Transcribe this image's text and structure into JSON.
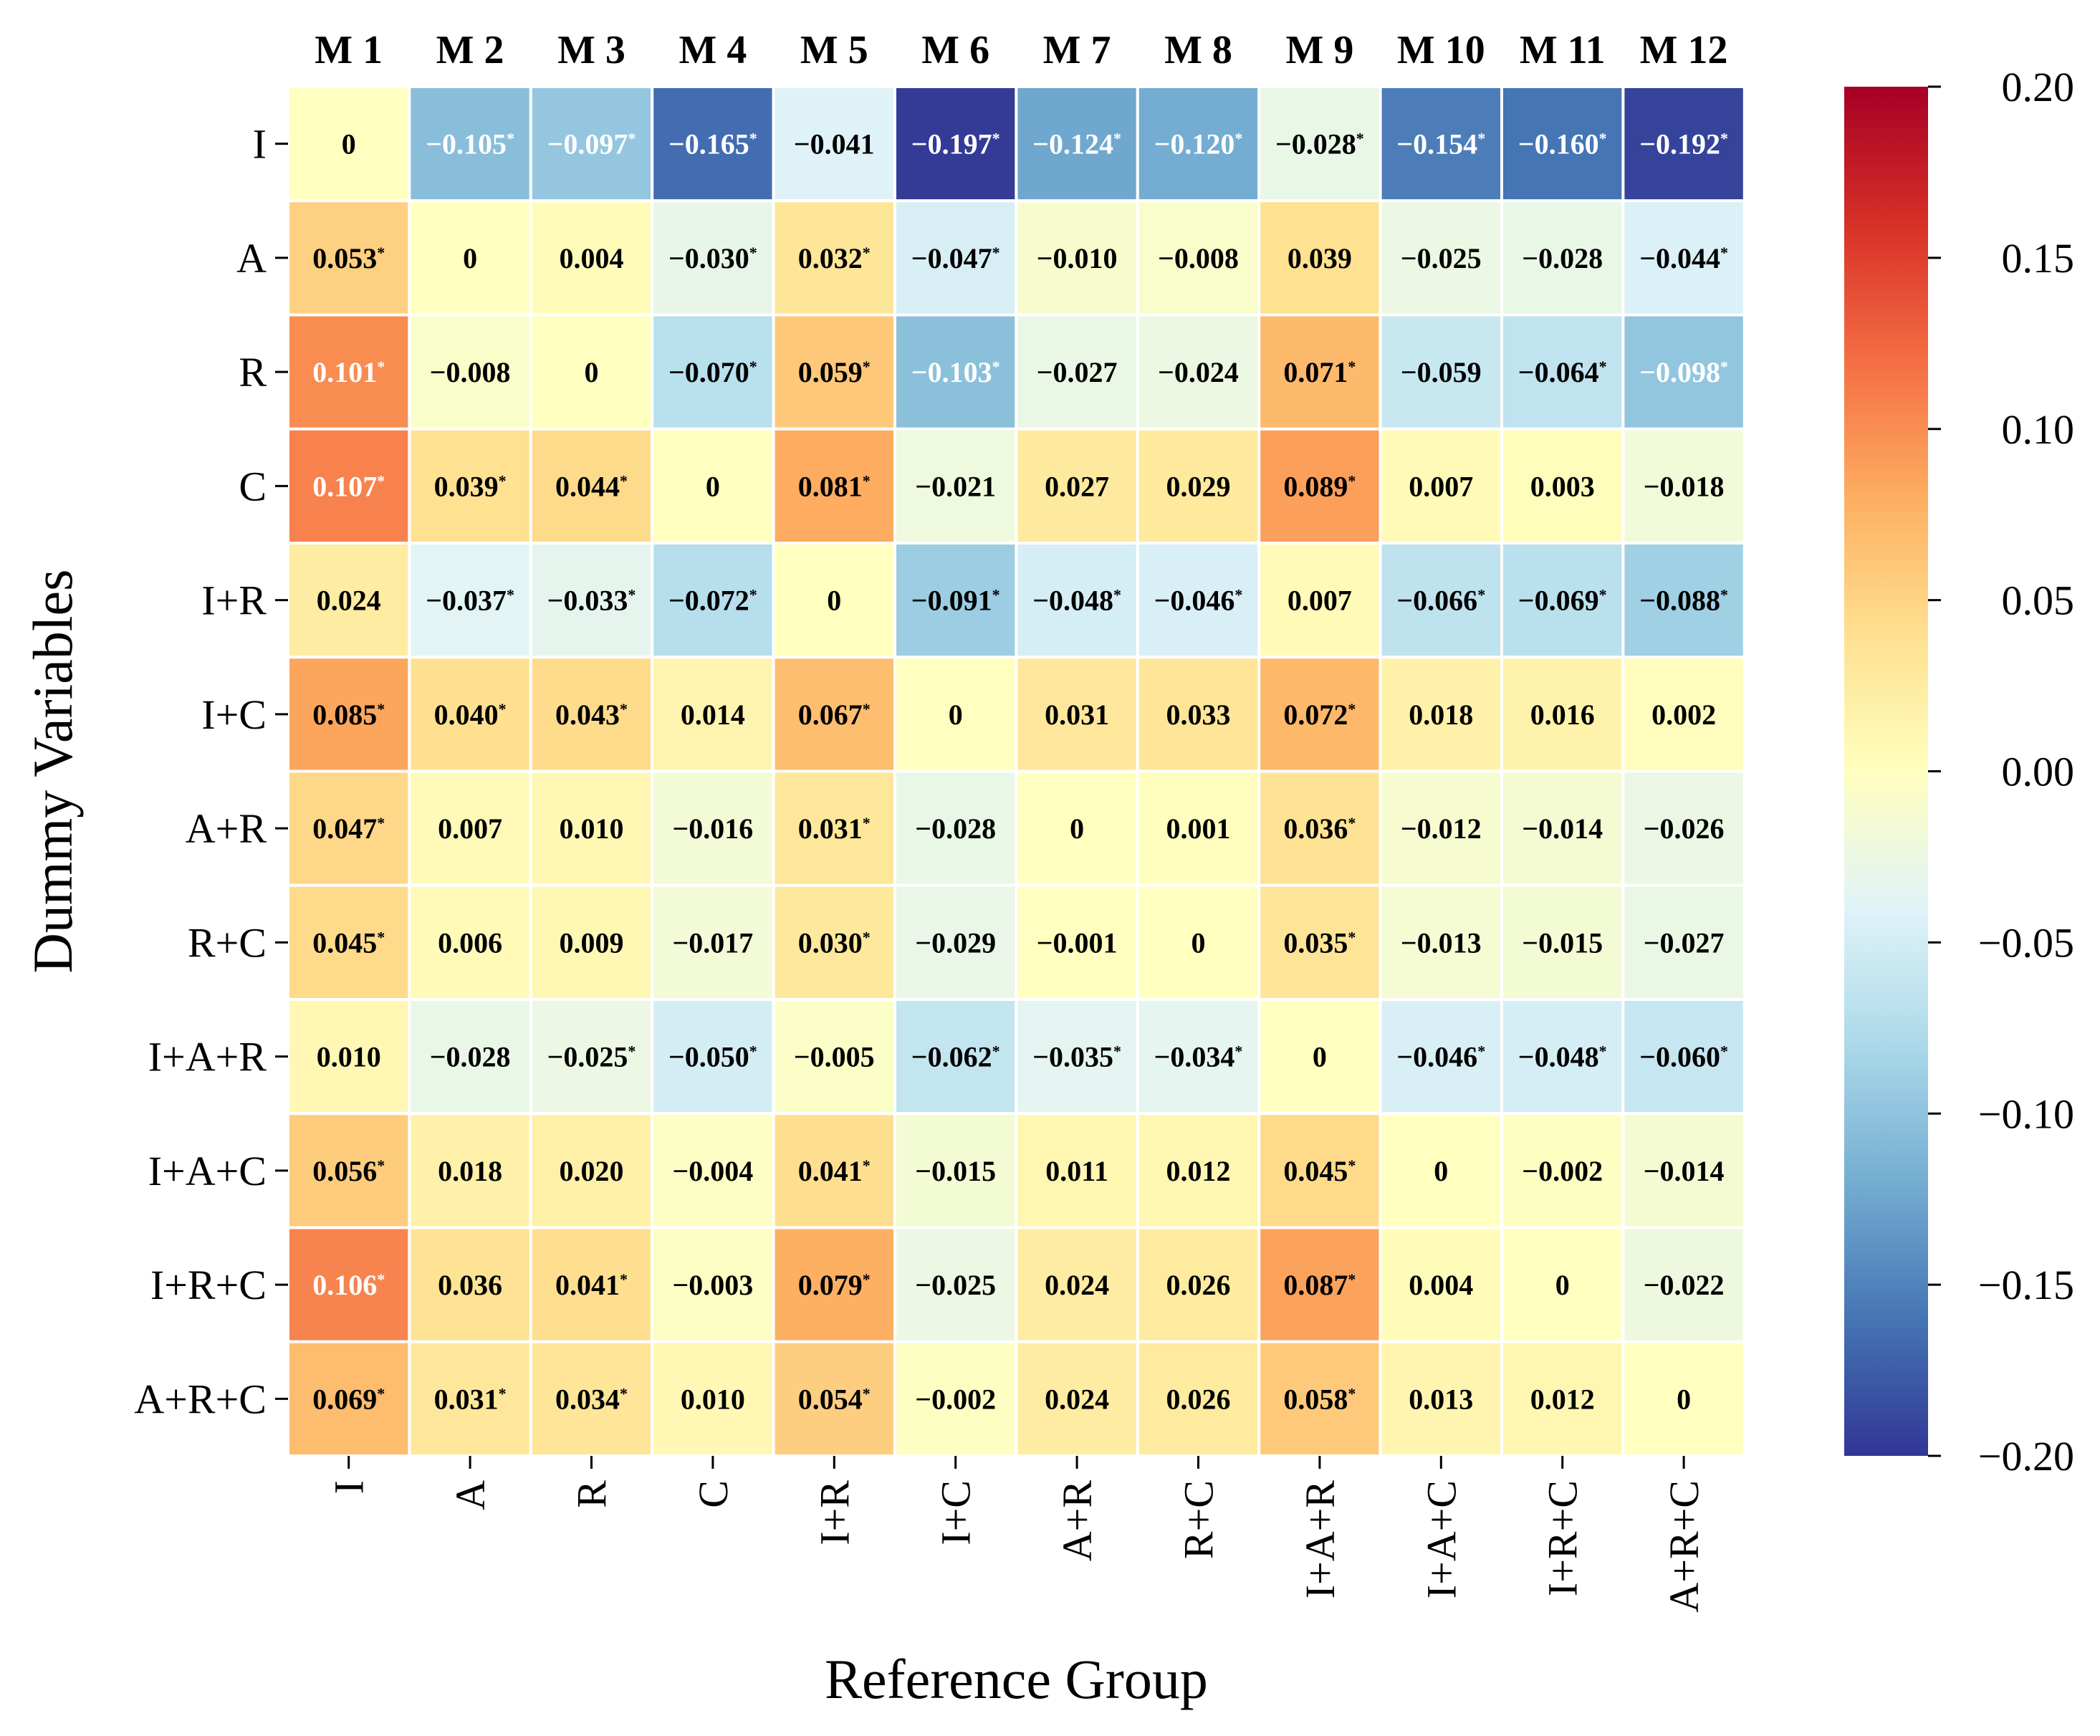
{
  "chart_data": {
    "type": "heatmap",
    "title": "",
    "xlabel": "Reference Group",
    "ylabel": "Dummy Variables",
    "models": [
      "M 1",
      "M 2",
      "M 3",
      "M 4",
      "M 5",
      "M 6",
      "M 7",
      "M 8",
      "M 9",
      "M 10",
      "M 11",
      "M 12"
    ],
    "columns": [
      "I",
      "A",
      "R",
      "C",
      "I+R",
      "I+C",
      "A+R",
      "R+C",
      "I+A+R",
      "I+A+C",
      "I+R+C",
      "A+R+C"
    ],
    "rows": [
      "I",
      "A",
      "R",
      "C",
      "I+R",
      "I+C",
      "A+R",
      "R+C",
      "I+A+R",
      "I+A+C",
      "I+R+C",
      "A+R+C"
    ],
    "colorbar": {
      "colormap": "RdYlBu_r",
      "vmin": -0.2,
      "vmax": 0.2,
      "ticks": [
        "0.20",
        "0.15",
        "0.10",
        "0.05",
        "0.00",
        "−0.05",
        "−0.10",
        "−0.15",
        "−0.20"
      ]
    },
    "significance_marker": "*",
    "labels": [
      [
        "0",
        "−0.105",
        "−0.097",
        "−0.165",
        "−0.041",
        "−0.197",
        "−0.124",
        "−0.120",
        "−0.028",
        "−0.154",
        "−0.160",
        "−0.192"
      ],
      [
        "0.053",
        "0",
        "0.004",
        "−0.030",
        "0.032",
        "−0.047",
        "−0.010",
        "−0.008",
        "0.039",
        "−0.025",
        "−0.028",
        "−0.044"
      ],
      [
        "0.101",
        "−0.008",
        "0",
        "−0.070",
        "0.059",
        "−0.103",
        "−0.027",
        "−0.024",
        "0.071",
        "−0.059",
        "−0.064",
        "−0.098"
      ],
      [
        "0.107",
        "0.039",
        "0.044",
        "0",
        "0.081",
        "−0.021",
        "0.027",
        "0.029",
        "0.089",
        "0.007",
        "0.003",
        "−0.018"
      ],
      [
        "0.024",
        "−0.037",
        "−0.033",
        "−0.072",
        "0",
        "−0.091",
        "−0.048",
        "−0.046",
        "0.007",
        "−0.066",
        "−0.069",
        "−0.088"
      ],
      [
        "0.085",
        "0.040",
        "0.043",
        "0.014",
        "0.067",
        "0",
        "0.031",
        "0.033",
        "0.072",
        "0.018",
        "0.016",
        "0.002"
      ],
      [
        "0.047",
        "0.007",
        "0.010",
        "−0.016",
        "0.031",
        "−0.028",
        "0",
        "0.001",
        "0.036",
        "−0.012",
        "−0.014",
        "−0.026"
      ],
      [
        "0.045",
        "0.006",
        "0.009",
        "−0.017",
        "0.030",
        "−0.029",
        "−0.001",
        "0",
        "0.035",
        "−0.013",
        "−0.015",
        "−0.027"
      ],
      [
        "0.010",
        "−0.028",
        "−0.025",
        "−0.050",
        "−0.005",
        "−0.062",
        "−0.035",
        "−0.034",
        "0",
        "−0.046",
        "−0.048",
        "−0.060"
      ],
      [
        "0.056",
        "0.018",
        "0.020",
        "−0.004",
        "0.041",
        "−0.015",
        "0.011",
        "0.012",
        "0.045",
        "0",
        "−0.002",
        "−0.014"
      ],
      [
        "0.106",
        "0.036",
        "0.041",
        "−0.003",
        "0.079",
        "−0.025",
        "0.024",
        "0.026",
        "0.087",
        "0.004",
        "0",
        "−0.022"
      ],
      [
        "0.069",
        "0.031",
        "0.034",
        "0.010",
        "0.054",
        "−0.002",
        "0.024",
        "0.026",
        "0.058",
        "0.013",
        "0.012",
        "0"
      ]
    ],
    "values": [
      [
        0,
        -0.105,
        -0.097,
        -0.165,
        -0.041,
        -0.197,
        -0.124,
        -0.12,
        -0.028,
        -0.154,
        -0.16,
        -0.192
      ],
      [
        0.053,
        0,
        0.004,
        -0.03,
        0.032,
        -0.047,
        -0.01,
        -0.008,
        0.039,
        -0.025,
        -0.028,
        -0.044
      ],
      [
        0.101,
        -0.008,
        0,
        -0.07,
        0.059,
        -0.103,
        -0.027,
        -0.024,
        0.071,
        -0.059,
        -0.064,
        -0.098
      ],
      [
        0.107,
        0.039,
        0.044,
        0,
        0.081,
        -0.021,
        0.027,
        0.029,
        0.089,
        0.007,
        0.003,
        -0.018
      ],
      [
        0.024,
        -0.037,
        -0.033,
        -0.072,
        0,
        -0.091,
        -0.048,
        -0.046,
        0.007,
        -0.066,
        -0.069,
        -0.088
      ],
      [
        0.085,
        0.04,
        0.043,
        0.014,
        0.067,
        0,
        0.031,
        0.033,
        0.072,
        0.018,
        0.016,
        0.002
      ],
      [
        0.047,
        0.007,
        0.01,
        -0.016,
        0.031,
        -0.028,
        0,
        0.001,
        0.036,
        -0.012,
        -0.014,
        -0.026
      ],
      [
        0.045,
        0.006,
        0.009,
        -0.017,
        0.03,
        -0.029,
        -0.001,
        0,
        0.035,
        -0.013,
        -0.015,
        -0.027
      ],
      [
        0.01,
        -0.028,
        -0.025,
        -0.05,
        -0.005,
        -0.062,
        -0.035,
        -0.034,
        0,
        -0.046,
        -0.048,
        -0.06
      ],
      [
        0.056,
        0.018,
        0.02,
        -0.004,
        0.041,
        -0.015,
        0.011,
        0.012,
        0.045,
        0,
        -0.002,
        -0.014
      ],
      [
        0.106,
        0.036,
        0.041,
        -0.003,
        0.079,
        -0.025,
        0.024,
        0.026,
        0.087,
        0.004,
        0,
        -0.022
      ],
      [
        0.069,
        0.031,
        0.034,
        0.01,
        0.054,
        -0.002,
        0.024,
        0.026,
        0.058,
        0.013,
        0.012,
        0
      ]
    ],
    "significant": [
      [
        false,
        true,
        true,
        true,
        false,
        true,
        true,
        true,
        true,
        true,
        true,
        true
      ],
      [
        true,
        false,
        false,
        true,
        true,
        true,
        false,
        false,
        false,
        false,
        false,
        true
      ],
      [
        true,
        false,
        false,
        true,
        true,
        true,
        false,
        false,
        true,
        false,
        true,
        true
      ],
      [
        true,
        true,
        true,
        false,
        true,
        false,
        false,
        false,
        true,
        false,
        false,
        false
      ],
      [
        false,
        true,
        true,
        true,
        false,
        true,
        true,
        true,
        false,
        true,
        true,
        true
      ],
      [
        true,
        true,
        true,
        false,
        true,
        false,
        false,
        false,
        true,
        false,
        false,
        false
      ],
      [
        true,
        false,
        false,
        false,
        true,
        false,
        false,
        false,
        true,
        false,
        false,
        false
      ],
      [
        true,
        false,
        false,
        false,
        true,
        false,
        false,
        false,
        true,
        false,
        false,
        false
      ],
      [
        false,
        false,
        true,
        true,
        false,
        true,
        true,
        true,
        false,
        true,
        true,
        true
      ],
      [
        true,
        false,
        false,
        false,
        true,
        false,
        false,
        false,
        true,
        false,
        false,
        false
      ],
      [
        true,
        false,
        true,
        false,
        true,
        false,
        false,
        false,
        true,
        false,
        false,
        false
      ],
      [
        true,
        true,
        true,
        false,
        true,
        false,
        false,
        false,
        true,
        false,
        false,
        false
      ]
    ]
  }
}
